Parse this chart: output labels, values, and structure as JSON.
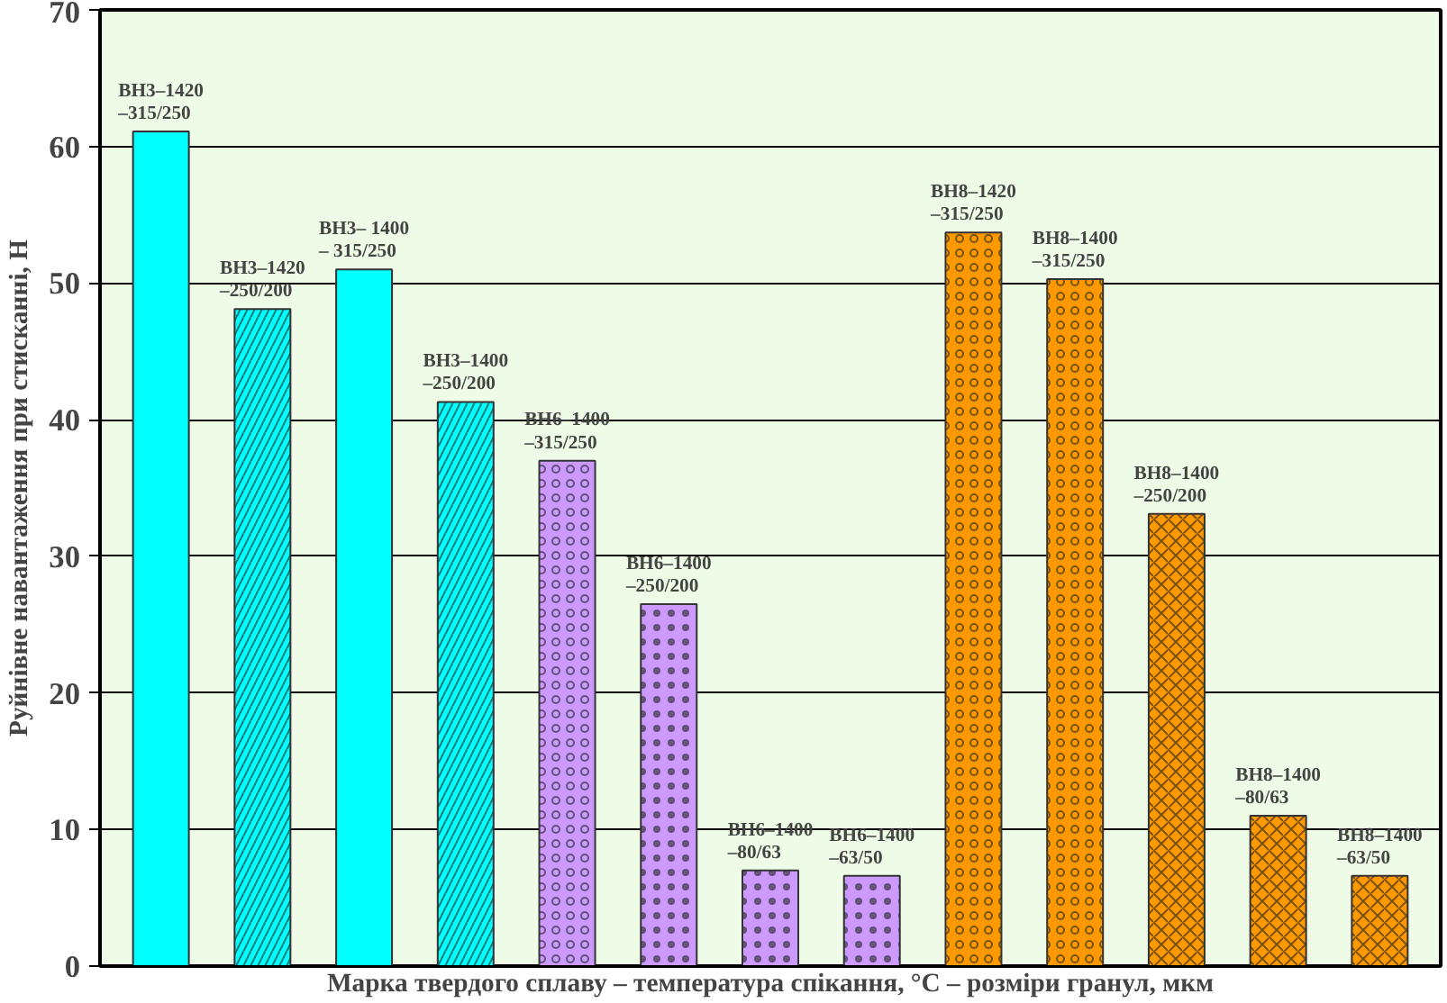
{
  "chart_data": {
    "type": "bar",
    "xlabel": "Марка твердого сплаву – температура спікання, °С – розміри гранул, мкм",
    "ylabel": "Руйнівне навантаження при стисканні, Н",
    "categories": [
      null,
      null,
      null,
      null,
      null,
      null,
      null,
      null,
      null,
      null,
      null,
      null,
      null
    ],
    "values": [
      61.1,
      48.1,
      51.0,
      41.3,
      37.0,
      26.5,
      7.0,
      6.6,
      53.7,
      50.3,
      33.1,
      11.0,
      6.6
    ],
    "colors": [
      "#00ffff",
      "#00ffff",
      "#00ffff",
      "#00ffff",
      "#cc99ff",
      "#cc99ff",
      "#cc99ff",
      "#cc99ff",
      "#ff9900",
      "#ff9900",
      "#ff9900",
      "#ff9900",
      "#ff9900"
    ],
    "value_labels": [
      "ВН3–1420\n–315/250",
      "ВН3–1420\n–250/200",
      "ВН3– 1400\n– 315/250",
      "ВН3–1400\n–250/200",
      "ВН6–1400\n–315/250",
      "ВН6–1400\n–250/200",
      "ВН6–1400\n–80/63",
      "ВН6–1400\n–63/50",
      "ВН8–1420\n–315/250",
      "ВН8–1400\n–315/250",
      "ВН8–1400\n–250/200",
      "ВН8–1400\n–80/63",
      "ВН8–1400\n–63/50"
    ],
    "ylim": [
      0,
      70
    ],
    "yticks": [
      0,
      10,
      20,
      30,
      40,
      50,
      60,
      70
    ],
    "grid": "y"
  }
}
